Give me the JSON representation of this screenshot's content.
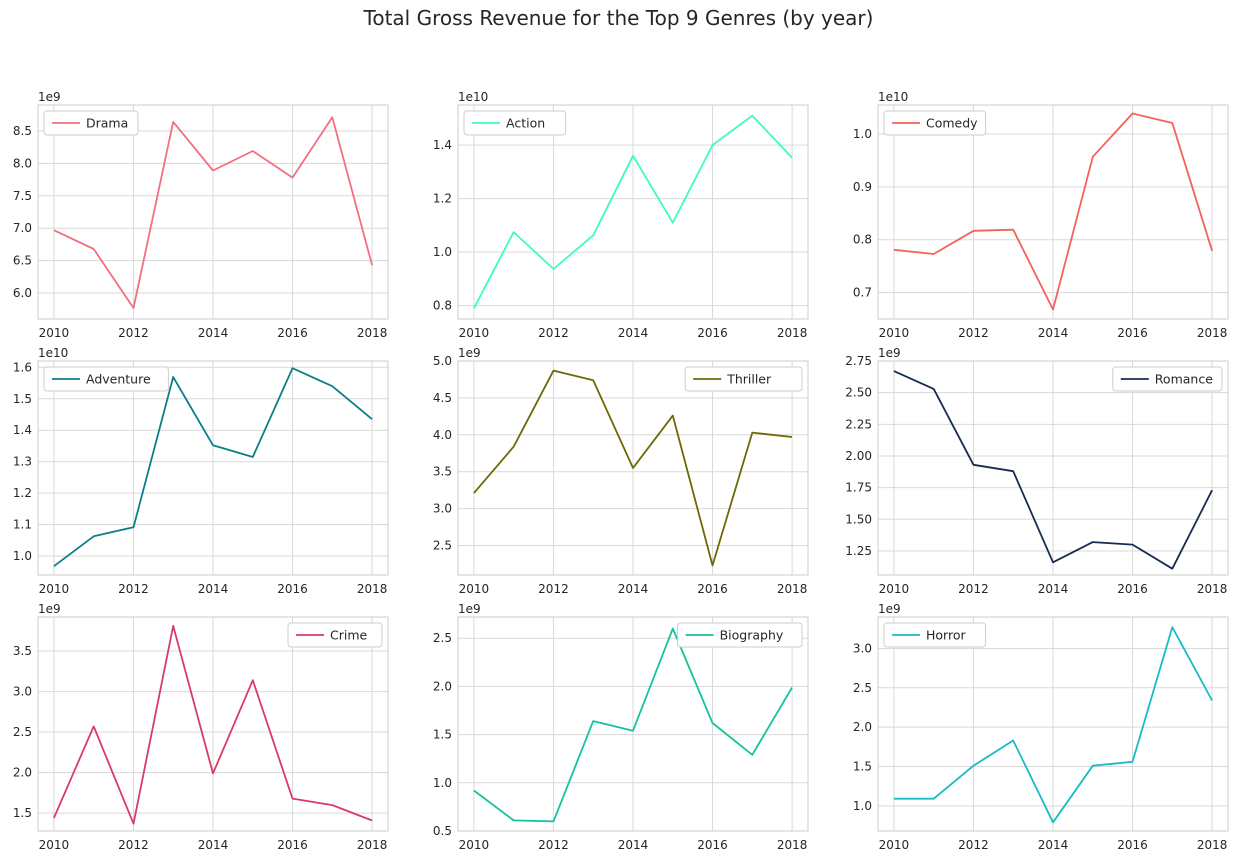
{
  "title": "Total Gross Revenue for the Top 9 Genres (by year)",
  "colors": {
    "grid": "#d9d9d9",
    "frame": "#cccccc",
    "text": "#262626"
  },
  "chart_data": [
    {
      "type": "line",
      "title": "",
      "xlabel": "",
      "ylabel": "",
      "x": [
        2010,
        2011,
        2012,
        2013,
        2014,
        2015,
        2016,
        2017,
        2018
      ],
      "xticks": [
        2010,
        2012,
        2014,
        2016,
        2018
      ],
      "series": [
        {
          "name": "Drama",
          "color": "#f07080",
          "values": [
            6970000000.0,
            6680000000.0,
            5770000000.0,
            8640000000.0,
            7890000000.0,
            8190000000.0,
            7780000000.0,
            8710000000.0,
            6430000000.0
          ]
        }
      ],
      "ylim": [
        5600000000.0,
        8900000000.0
      ],
      "yticks": [
        6.0,
        6.5,
        7.0,
        7.5,
        8.0,
        8.5
      ],
      "yticklabels": [
        "6.0",
        "6.5",
        "7.0",
        "7.5",
        "8.0",
        "8.5"
      ],
      "offset_label": "1e9",
      "legend_loc": "top-left",
      "grid": true
    },
    {
      "type": "line",
      "title": "",
      "xlabel": "",
      "ylabel": "",
      "x": [
        2010,
        2011,
        2012,
        2013,
        2014,
        2015,
        2016,
        2017,
        2018
      ],
      "xticks": [
        2010,
        2012,
        2014,
        2016,
        2018
      ],
      "series": [
        {
          "name": "Action",
          "color": "#3dfcbf",
          "values": [
            7900000000.0,
            10750000000.0,
            9370000000.0,
            10630000000.0,
            13600000000.0,
            11100000000.0,
            14000000000.0,
            15100000000.0,
            13530000000.0
          ]
        }
      ],
      "ylim": [
        7500000000.0,
        15500000000.0
      ],
      "yticks": [
        0.8,
        1.0,
        1.2,
        1.4
      ],
      "yticklabels": [
        "0.8",
        "1.0",
        "1.2",
        "1.4"
      ],
      "offset_label": "1e10",
      "legend_loc": "top-left",
      "grid": true
    },
    {
      "type": "line",
      "title": "",
      "xlabel": "",
      "ylabel": "",
      "x": [
        2010,
        2011,
        2012,
        2013,
        2014,
        2015,
        2016,
        2017,
        2018
      ],
      "xticks": [
        2010,
        2012,
        2014,
        2016,
        2018
      ],
      "series": [
        {
          "name": "Comedy",
          "color": "#f5615c",
          "values": [
            7810000000.0,
            7730000000.0,
            8170000000.0,
            8190000000.0,
            6680000000.0,
            9570000000.0,
            10390000000.0,
            10210000000.0,
            7790000000.0
          ]
        }
      ],
      "ylim": [
        6500000000.0,
        10550000000.0
      ],
      "yticks": [
        0.7,
        0.8,
        0.9,
        1.0
      ],
      "yticklabels": [
        "0.7",
        "0.8",
        "0.9",
        "1.0"
      ],
      "offset_label": "1e10",
      "legend_loc": "top-left",
      "grid": true
    },
    {
      "type": "line",
      "title": "",
      "xlabel": "",
      "ylabel": "",
      "x": [
        2010,
        2011,
        2012,
        2013,
        2014,
        2015,
        2016,
        2017,
        2018
      ],
      "xticks": [
        2010,
        2012,
        2014,
        2016,
        2018
      ],
      "series": [
        {
          "name": "Adventure",
          "color": "#0b7f87",
          "values": [
            9680000000.0,
            10630000000.0,
            10920000000.0,
            15690000000.0,
            13520000000.0,
            13150000000.0,
            15970000000.0,
            15400000000.0,
            14350000000.0
          ]
        }
      ],
      "ylim": [
        9400000000.0,
        16200000000.0
      ],
      "yticks": [
        1.0,
        1.1,
        1.2,
        1.3,
        1.4,
        1.5,
        1.6
      ],
      "yticklabels": [
        "1.0",
        "1.1",
        "1.2",
        "1.3",
        "1.4",
        "1.5",
        "1.6"
      ],
      "offset_label": "1e10",
      "legend_loc": "top-left",
      "grid": true
    },
    {
      "type": "line",
      "title": "",
      "xlabel": "",
      "ylabel": "",
      "x": [
        2010,
        2011,
        2012,
        2013,
        2014,
        2015,
        2016,
        2017,
        2018
      ],
      "xticks": [
        2010,
        2012,
        2014,
        2016,
        2018
      ],
      "series": [
        {
          "name": "Thriller",
          "color": "#6e6804",
          "values": [
            3210000000.0,
            3840000000.0,
            4870000000.0,
            4740000000.0,
            3550000000.0,
            4260000000.0,
            2230000000.0,
            4030000000.0,
            3970000000.0
          ]
        }
      ],
      "ylim": [
        2100000000.0,
        5000000000.0
      ],
      "yticks": [
        2.5,
        3.0,
        3.5,
        4.0,
        4.5,
        5.0
      ],
      "yticklabels": [
        "2.5",
        "3.0",
        "3.5",
        "4.0",
        "4.5",
        "5.0"
      ],
      "offset_label": "1e9",
      "legend_loc": "top-right",
      "grid": true
    },
    {
      "type": "line",
      "title": "",
      "xlabel": "",
      "ylabel": "",
      "x": [
        2010,
        2011,
        2012,
        2013,
        2014,
        2015,
        2016,
        2017,
        2018
      ],
      "xticks": [
        2010,
        2012,
        2014,
        2016,
        2018
      ],
      "series": [
        {
          "name": "Romance",
          "color": "#182c52",
          "values": [
            2670000000.0,
            2530000000.0,
            1930000000.0,
            1880000000.0,
            1160000000.0,
            1320000000.0,
            1300000000.0,
            1110000000.0,
            1730000000.0
          ]
        }
      ],
      "ylim": [
        1060000000.0,
        2750000000.0
      ],
      "yticks": [
        1.25,
        1.5,
        1.75,
        2.0,
        2.25,
        2.5,
        2.75
      ],
      "yticklabels": [
        "1.25",
        "1.50",
        "1.75",
        "2.00",
        "2.25",
        "2.50",
        "2.75"
      ],
      "offset_label": "1e9",
      "legend_loc": "top-right",
      "grid": true
    },
    {
      "type": "line",
      "title": "",
      "xlabel": "",
      "ylabel": "",
      "x": [
        2010,
        2011,
        2012,
        2013,
        2014,
        2015,
        2016,
        2017,
        2018
      ],
      "xticks": [
        2010,
        2012,
        2014,
        2016,
        2018
      ],
      "series": [
        {
          "name": "Crime",
          "color": "#d83c66",
          "values": [
            1440000000.0,
            2570000000.0,
            1370000000.0,
            3810000000.0,
            1990000000.0,
            3140000000.0,
            1680000000.0,
            1600000000.0,
            1410000000.0
          ]
        }
      ],
      "ylim": [
        1280000000.0,
        3920000000.0
      ],
      "yticks": [
        1.5,
        2.0,
        2.5,
        3.0,
        3.5
      ],
      "yticklabels": [
        "1.5",
        "2.0",
        "2.5",
        "3.0",
        "3.5"
      ],
      "offset_label": "1e9",
      "legend_loc": "top-right",
      "grid": true
    },
    {
      "type": "line",
      "title": "",
      "xlabel": "",
      "ylabel": "",
      "x": [
        2010,
        2011,
        2012,
        2013,
        2014,
        2015,
        2016,
        2017,
        2018
      ],
      "xticks": [
        2010,
        2012,
        2014,
        2016,
        2018
      ],
      "series": [
        {
          "name": "Biography",
          "color": "#14c2a0",
          "values": [
            920000000.0,
            610000000.0,
            600000000.0,
            1640000000.0,
            1540000000.0,
            2600000000.0,
            1620000000.0,
            1290000000.0,
            1990000000.0
          ]
        }
      ],
      "ylim": [
        500000000.0,
        2720000000.0
      ],
      "yticks": [
        0.5,
        1.0,
        1.5,
        2.0,
        2.5
      ],
      "yticklabels": [
        "0.5",
        "1.0",
        "1.5",
        "2.0",
        "2.5"
      ],
      "offset_label": "1e9",
      "legend_loc": "top-right",
      "grid": true
    },
    {
      "type": "line",
      "title": "",
      "xlabel": "",
      "ylabel": "",
      "x": [
        2010,
        2011,
        2012,
        2013,
        2014,
        2015,
        2016,
        2017,
        2018
      ],
      "xticks": [
        2010,
        2012,
        2014,
        2016,
        2018
      ],
      "series": [
        {
          "name": "Horror",
          "color": "#18bcc4",
          "values": [
            1090000000.0,
            1090000000.0,
            1510000000.0,
            1830000000.0,
            790000000.0,
            1510000000.0,
            1560000000.0,
            3270000000.0,
            2340000000.0
          ]
        }
      ],
      "ylim": [
        680000000.0,
        3400000000.0
      ],
      "yticks": [
        1.0,
        1.5,
        2.0,
        2.5,
        3.0
      ],
      "yticklabels": [
        "1.0",
        "1.5",
        "2.0",
        "2.5",
        "3.0"
      ],
      "offset_label": "1e9",
      "legend_loc": "top-left",
      "grid": true
    }
  ]
}
